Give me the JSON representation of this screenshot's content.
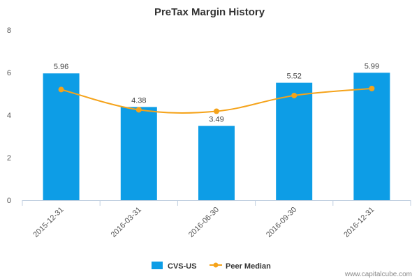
{
  "chart_data": {
    "type": "bar",
    "title": "PreTax Margin History",
    "xlabel": "",
    "ylabel": "",
    "categories": [
      "2015-12-31",
      "2016-03-31",
      "2016-06-30",
      "2016-09-30",
      "2016-12-31"
    ],
    "ylim": [
      0,
      8
    ],
    "yticks": [
      0,
      2,
      4,
      6,
      8
    ],
    "grid": false,
    "legend_position": "bottom-center",
    "series": [
      {
        "name": "CVS-US",
        "type": "bar",
        "color": "#0d9de6",
        "values": [
          5.96,
          4.38,
          3.49,
          5.52,
          5.99
        ],
        "labels": [
          "5.96",
          "4.38",
          "3.49",
          "5.52",
          "5.99"
        ]
      },
      {
        "name": "Peer Median",
        "type": "line",
        "color": "#f5a31a",
        "values": [
          5.2,
          4.25,
          4.18,
          4.92,
          5.25
        ]
      }
    ]
  },
  "watermark": "www.capitalcube.com"
}
